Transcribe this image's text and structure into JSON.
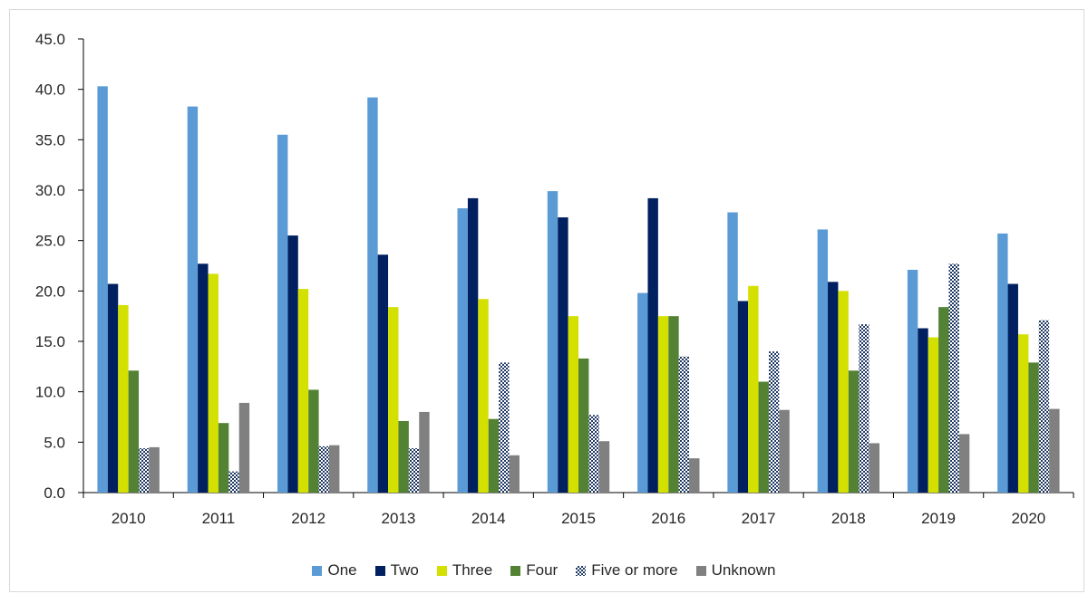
{
  "chart_data": {
    "type": "bar",
    "title": "",
    "xlabel": "",
    "ylabel": "",
    "categories": [
      "2010",
      "2011",
      "2012",
      "2013",
      "2014",
      "2015",
      "2016",
      "2017",
      "2018",
      "2019",
      "2020"
    ],
    "ylim": [
      0,
      45
    ],
    "yticks": [
      "0.0",
      "5.0",
      "10.0",
      "15.0",
      "20.0",
      "25.0",
      "30.0",
      "35.0",
      "40.0",
      "45.0"
    ],
    "grid": false,
    "legend_position": "bottom",
    "series": [
      {
        "name": "One",
        "color": "#5b9bd5",
        "pattern": "solid",
        "values": [
          40.3,
          38.3,
          35.5,
          39.2,
          28.2,
          29.9,
          19.8,
          27.8,
          26.1,
          22.1,
          25.7
        ]
      },
      {
        "name": "Two",
        "color": "#002060",
        "pattern": "solid",
        "values": [
          20.7,
          22.7,
          25.5,
          23.6,
          29.2,
          27.3,
          29.2,
          19.0,
          20.9,
          16.3,
          20.7
        ]
      },
      {
        "name": "Three",
        "color": "#d4e000",
        "pattern": "solid",
        "values": [
          18.6,
          21.7,
          20.2,
          18.4,
          19.2,
          17.5,
          17.5,
          20.5,
          20.0,
          15.4,
          15.7
        ]
      },
      {
        "name": "Four",
        "color": "#548235",
        "pattern": "solid",
        "values": [
          12.1,
          6.9,
          10.2,
          7.1,
          7.3,
          13.3,
          17.5,
          11.0,
          12.1,
          18.4,
          12.9
        ]
      },
      {
        "name": "Five or more",
        "color": "#1f3864",
        "pattern": "checker",
        "values": [
          4.4,
          2.1,
          4.6,
          4.4,
          12.9,
          7.7,
          13.5,
          14.0,
          16.7,
          22.7,
          17.1
        ]
      },
      {
        "name": "Unknown",
        "color": "#808080",
        "pattern": "solid",
        "values": [
          4.5,
          8.9,
          4.7,
          8.0,
          3.7,
          5.1,
          3.4,
          8.2,
          4.9,
          5.8,
          8.3
        ]
      }
    ]
  }
}
